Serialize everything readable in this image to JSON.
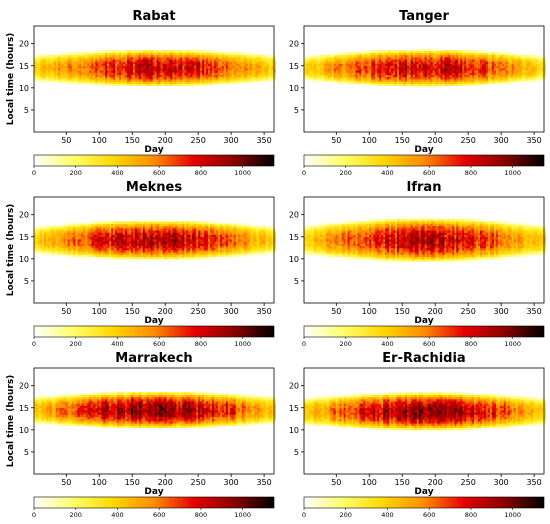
{
  "figure": {
    "colormap": [
      "#ffffff",
      "#ffff66",
      "#ffd700",
      "#ff8c00",
      "#e60000",
      "#8b0000",
      "#000000"
    ],
    "panels": [
      {
        "title": "Rabat",
        "peak_hour": 14.5,
        "half_width_summer": 4.2,
        "half_width_winter": 2.9,
        "max_intensity": 880
      },
      {
        "title": "Tanger",
        "peak_hour": 14.5,
        "half_width_summer": 4.3,
        "half_width_winter": 2.7,
        "max_intensity": 860
      },
      {
        "title": "Meknes",
        "peak_hour": 14.3,
        "half_width_summer": 4.5,
        "half_width_winter": 3.0,
        "max_intensity": 900
      },
      {
        "title": "Ifran",
        "peak_hour": 14.3,
        "half_width_summer": 5.0,
        "half_width_winter": 3.2,
        "max_intensity": 880
      },
      {
        "title": "Marrakech",
        "peak_hour": 14.5,
        "half_width_summer": 4.2,
        "half_width_winter": 3.0,
        "max_intensity": 980
      },
      {
        "title": "Er-Rachidia",
        "peak_hour": 14.2,
        "half_width_summer": 4.3,
        "half_width_winter": 3.0,
        "max_intensity": 960
      }
    ]
  },
  "chart_data": {
    "type": "heatmap",
    "x_label": "Day",
    "y_label": "Local time (hours)",
    "x_ticks": [
      50,
      100,
      150,
      200,
      250,
      300,
      350
    ],
    "y_ticks": [
      5,
      10,
      15,
      20
    ],
    "xlim": [
      1,
      365
    ],
    "ylim": [
      0,
      24
    ],
    "colorbar_ticks": [
      0,
      200,
      400,
      600,
      800,
      1000
    ],
    "colorbar_range": [
      0,
      1150
    ]
  }
}
